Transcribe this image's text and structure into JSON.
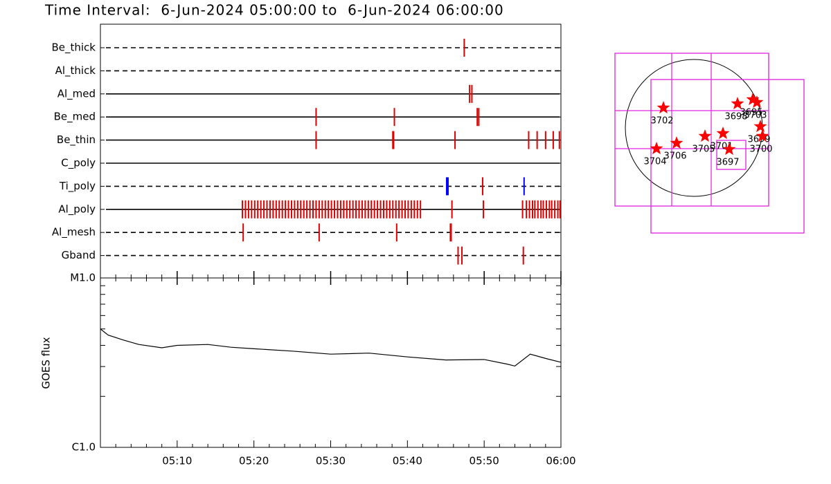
{
  "chart_data": [
    {
      "type": "timeline",
      "title": "Time Interval:  6-Jun-2024 05:00:00 to  6-Jun-2024 06:00:00",
      "xlim": [
        0,
        60
      ],
      "rows": [
        {
          "name": "Be_thick",
          "linestyle": "dashed",
          "color": "#e00000",
          "values": [
            47.4
          ]
        },
        {
          "name": "Al_thick",
          "linestyle": "dashed",
          "color": "#e00000",
          "values": []
        },
        {
          "name": "Al_med",
          "linestyle": "solid",
          "color": "#e00000",
          "values": [
            48.1,
            48.4
          ]
        },
        {
          "name": "Be_med",
          "linestyle": "solid",
          "color": "#e00000",
          "values": [
            28.1,
            38.3,
            49.1,
            49.3
          ]
        },
        {
          "name": "Be_thin",
          "linestyle": "solid",
          "color": "#e00000",
          "values": [
            28.1,
            38.1,
            38.2,
            46.2,
            55.8,
            56.9,
            58.0,
            59.0,
            59.8
          ]
        },
        {
          "name": "C_poly",
          "linestyle": "solid",
          "color": "#e00000",
          "values": []
        },
        {
          "name": "Ti_poly",
          "linestyle": "dashed",
          "color": "#e00000",
          "colors": [
            "#0000ff",
            "#e00000",
            "#0000ff"
          ],
          "values": [
            45.2,
            49.8,
            55.2
          ]
        },
        {
          "name": "Al_poly",
          "linestyle": "solid",
          "color": "#e00000",
          "values": [
            18.5,
            18.9,
            19.3,
            19.7,
            20.1,
            20.5,
            20.9,
            21.3,
            21.7,
            22.1,
            22.5,
            22.9,
            23.3,
            23.7,
            24.1,
            24.5,
            24.9,
            25.3,
            25.7,
            26.1,
            26.5,
            26.9,
            27.3,
            27.7,
            28.1,
            28.5,
            28.9,
            29.3,
            29.7,
            30.1,
            30.5,
            30.9,
            31.3,
            31.7,
            32.1,
            32.5,
            32.9,
            33.3,
            33.7,
            34.1,
            34.5,
            34.9,
            35.3,
            35.7,
            36.1,
            36.5,
            36.9,
            37.3,
            37.7,
            38.1,
            38.5,
            38.9,
            39.3,
            39.7,
            40.1,
            40.5,
            40.9,
            41.3,
            41.7,
            45.8,
            49.9,
            55.0,
            55.5,
            55.9,
            56.3,
            56.6,
            57.0,
            57.4,
            57.7,
            58.1,
            58.5,
            58.8,
            59.2,
            59.6,
            59.9
          ]
        },
        {
          "name": "Al_mesh",
          "linestyle": "dashed",
          "color": "#e00000",
          "values": [
            18.6,
            28.5,
            38.6,
            45.6,
            45.7
          ]
        },
        {
          "name": "Gband",
          "linestyle": "dashed",
          "color": "#e00000",
          "values": [
            46.6,
            47.1,
            55.1
          ]
        }
      ]
    },
    {
      "type": "line",
      "ylabel": "GOES flux",
      "log": true,
      "color": "#000000",
      "xlim": [
        0,
        60
      ],
      "xticks": [
        {
          "value": 10,
          "label": "05:10"
        },
        {
          "value": 20,
          "label": "05:20"
        },
        {
          "value": 30,
          "label": "05:30"
        },
        {
          "value": 40,
          "label": "05:40"
        },
        {
          "value": 50,
          "label": "05:50"
        },
        {
          "value": 60,
          "label": "06:00"
        }
      ],
      "xminorticks": [
        2,
        4,
        6,
        8,
        12,
        14,
        16,
        18,
        22,
        24,
        26,
        28,
        32,
        34,
        36,
        38,
        42,
        44,
        46,
        48,
        52,
        54,
        56,
        58
      ],
      "ylim": [
        1e-06,
        1e-05
      ],
      "yticks": [
        {
          "value": 1e-06,
          "label": "C1.0"
        },
        {
          "value": 1e-05,
          "label": "M1.0"
        }
      ],
      "yminorticks": [
        2e-06,
        3e-06,
        4e-06,
        5e-06,
        6e-06,
        7e-06,
        8e-06,
        9e-06
      ],
      "x": [
        0,
        1,
        3,
        5,
        8,
        10,
        14,
        17,
        20,
        25,
        30,
        35,
        40,
        45,
        50,
        53,
        54,
        56,
        58,
        60
      ],
      "values": [
        5e-06,
        4.6e-06,
        4.3e-06,
        4.05e-06,
        3.87e-06,
        4e-06,
        4.05e-06,
        3.9e-06,
        3.82e-06,
        3.7e-06,
        3.55e-06,
        3.6e-06,
        3.42e-06,
        3.28e-06,
        3.3e-06,
        3.1e-06,
        3.02e-06,
        3.55e-06,
        3.35e-06,
        3.18e-06
      ]
    },
    {
      "type": "map",
      "color": "#e020e0",
      "marker_color": "#ff0000",
      "regions": [
        "3702",
        "3704",
        "3706",
        "3705",
        "3701",
        "3697",
        "3698",
        "3695",
        "3703",
        "3699",
        "3700"
      ]
    }
  ]
}
